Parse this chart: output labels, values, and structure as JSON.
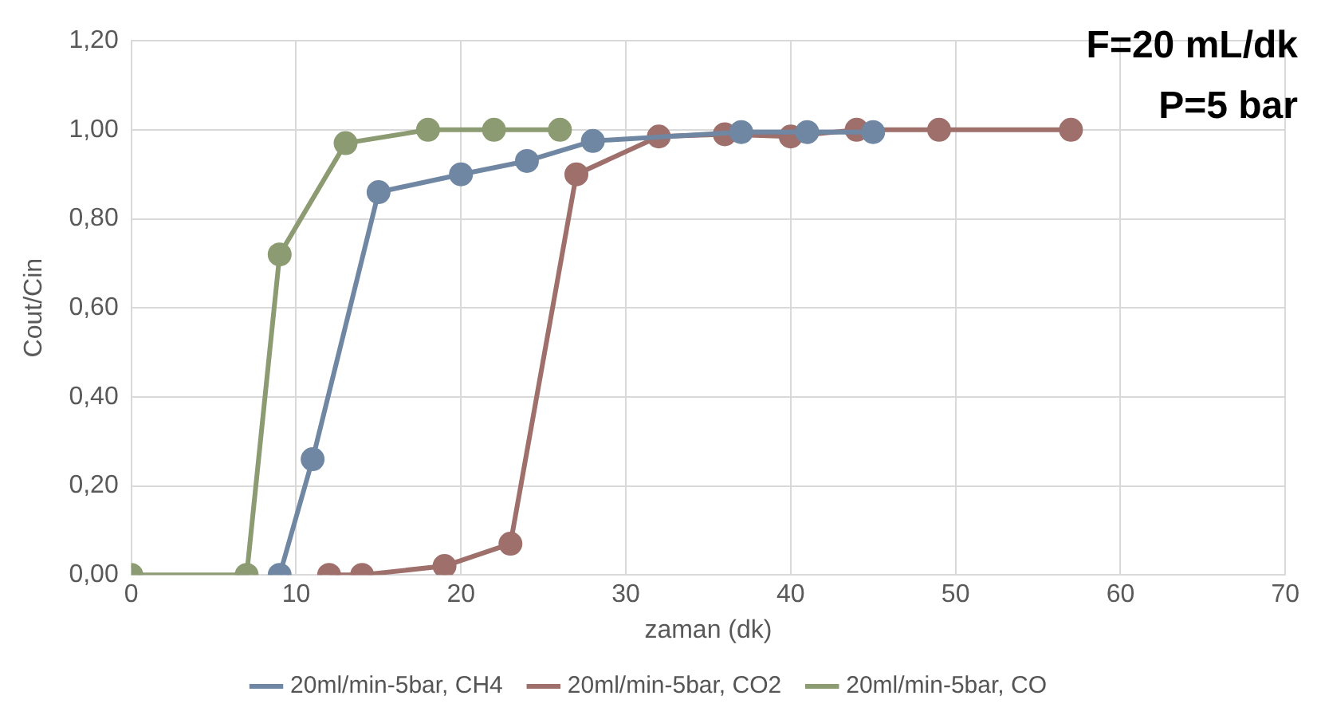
{
  "chart_data": {
    "type": "line",
    "xlabel": "zaman (dk)",
    "ylabel": "Cout/Cin",
    "annotations": [
      "F=20 mL/dk",
      "P=5 bar"
    ],
    "xlim": [
      0,
      70
    ],
    "xticks": [
      0,
      10,
      20,
      30,
      40,
      50,
      60,
      70
    ],
    "ylim": [
      0,
      1.2
    ],
    "yticks": [
      {
        "value": 0,
        "label": "0,00"
      },
      {
        "value": 0.2,
        "label": "0,20"
      },
      {
        "value": 0.4,
        "label": "0,40"
      },
      {
        "value": 0.6,
        "label": "0,60"
      },
      {
        "value": 0.8,
        "label": "0,80"
      },
      {
        "value": 1,
        "label": "1,00"
      },
      {
        "value": 1.2,
        "label": "1,20"
      }
    ],
    "grid": true,
    "legend": "bottom",
    "marker": "circle",
    "line_style": "solid",
    "series": [
      {
        "name": "20ml/min-5bar, CH4",
        "color": "#6f87a3",
        "x": [
          9,
          11,
          15,
          20,
          24,
          28,
          37,
          41,
          45
        ],
        "values": [
          0,
          0.26,
          0.86,
          0.9,
          0.93,
          0.975,
          0.995,
          0.995,
          0.995
        ]
      },
      {
        "name": "20ml/min-5bar, CO2",
        "color": "#9e6f6b",
        "x": [
          12,
          14,
          19,
          23,
          27,
          32,
          36,
          40,
          44,
          49,
          57
        ],
        "values": [
          0,
          0,
          0.02,
          0.07,
          0.9,
          0.985,
          0.99,
          0.985,
          1,
          1,
          1
        ]
      },
      {
        "name": "20ml/min-5bar, CO",
        "color": "#8c9b72",
        "x": [
          0,
          7,
          9,
          13,
          18,
          22,
          26
        ],
        "values": [
          0,
          0,
          0.72,
          0.97,
          1,
          1,
          1
        ]
      }
    ]
  }
}
